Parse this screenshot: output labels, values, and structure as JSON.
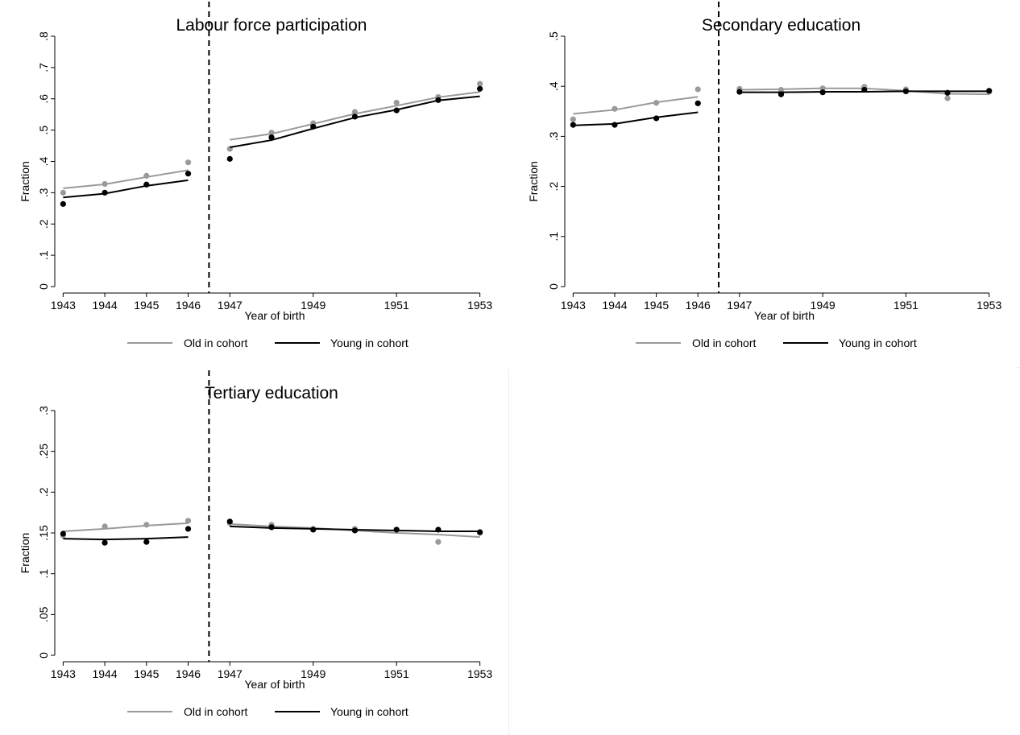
{
  "figure": {
    "xlabel": "Year of birth",
    "ylabel": "Fraction",
    "legend": {
      "old": "Old in cohort",
      "young": "Young in cohort",
      "placement": "bottom"
    },
    "colors": {
      "old": "#9a9a9a",
      "young": "#000000",
      "cutoff": "#000000",
      "axis": "#000000"
    },
    "cutoff_x": 1946.5
  },
  "chart_data": [
    {
      "type": "scatter",
      "title": "Labour force participation",
      "xlabel": "Year of birth",
      "ylabel": "Fraction",
      "xlim": [
        1942.8,
        1953.2
      ],
      "ylim": [
        0,
        0.8
      ],
      "yticks": [
        0,
        0.1,
        0.2,
        0.3,
        0.4,
        0.5,
        0.6,
        0.7,
        0.8
      ],
      "ytick_labels": [
        "0",
        ".1",
        ".2",
        ".3",
        ".4",
        ".5",
        ".6",
        ".7",
        ".8"
      ],
      "xticks": [
        1943,
        1944,
        1945,
        1946,
        1947,
        1949,
        1951,
        1953
      ],
      "xtick_labels": [
        "1943",
        "1944",
        "1945",
        "1946",
        "1947",
        "1949",
        "1951",
        "1953"
      ],
      "grid": false,
      "series": [
        {
          "name": "Old in cohort",
          "points": [
            [
              1943,
              0.3
            ],
            [
              1944,
              0.328
            ],
            [
              1945,
              0.354
            ],
            [
              1946,
              0.397
            ],
            [
              1947,
              0.44
            ],
            [
              1948,
              0.492
            ],
            [
              1949,
              0.522
            ],
            [
              1950,
              0.558
            ],
            [
              1951,
              0.588
            ],
            [
              1952,
              0.606
            ],
            [
              1953,
              0.648
            ]
          ],
          "fit": [
            [
              [
                1943,
                0.314
              ],
              [
                1944,
                0.327
              ],
              [
                1945,
                0.35
              ],
              [
                1946,
                0.372
              ]
            ],
            [
              [
                1947,
                0.469
              ],
              [
                1948,
                0.488
              ],
              [
                1949,
                0.52
              ],
              [
                1950,
                0.552
              ],
              [
                1951,
                0.578
              ],
              [
                1952,
                0.605
              ],
              [
                1953,
                0.622
              ]
            ]
          ]
        },
        {
          "name": "Young in cohort",
          "points": [
            [
              1943,
              0.264
            ],
            [
              1944,
              0.3
            ],
            [
              1945,
              0.326
            ],
            [
              1946,
              0.361
            ],
            [
              1947,
              0.408
            ],
            [
              1948,
              0.477
            ],
            [
              1949,
              0.511
            ],
            [
              1950,
              0.543
            ],
            [
              1951,
              0.563
            ],
            [
              1952,
              0.596
            ],
            [
              1953,
              0.632
            ]
          ],
          "fit": [
            [
              [
                1943,
                0.285
              ],
              [
                1944,
                0.297
              ],
              [
                1945,
                0.322
              ],
              [
                1946,
                0.34
              ]
            ],
            [
              [
                1947,
                0.445
              ],
              [
                1948,
                0.468
              ],
              [
                1949,
                0.505
              ],
              [
                1950,
                0.54
              ],
              [
                1951,
                0.565
              ],
              [
                1952,
                0.595
              ],
              [
                1953,
                0.608
              ]
            ]
          ]
        }
      ]
    },
    {
      "type": "scatter",
      "title": "Secondary education",
      "xlabel": "Year of birth",
      "ylabel": "Fraction",
      "xlim": [
        1942.8,
        1953.2
      ],
      "ylim": [
        0,
        0.5
      ],
      "yticks": [
        0,
        0.1,
        0.2,
        0.3,
        0.4,
        0.5
      ],
      "ytick_labels": [
        "0",
        ".1",
        ".2",
        ".3",
        ".4",
        ".5"
      ],
      "xticks": [
        1943,
        1944,
        1945,
        1946,
        1947,
        1949,
        1951,
        1953
      ],
      "xtick_labels": [
        "1943",
        "1944",
        "1945",
        "1946",
        "1947",
        "1949",
        "1951",
        "1953"
      ],
      "grid": false,
      "series": [
        {
          "name": "Old in cohort",
          "points": [
            [
              1943,
              0.334
            ],
            [
              1944,
              0.355
            ],
            [
              1945,
              0.367
            ],
            [
              1946,
              0.394
            ],
            [
              1947,
              0.395
            ],
            [
              1948,
              0.393
            ],
            [
              1949,
              0.396
            ],
            [
              1950,
              0.399
            ],
            [
              1951,
              0.394
            ],
            [
              1952,
              0.376
            ],
            [
              1953,
              0.389
            ]
          ],
          "fit": [
            [
              [
                1943,
                0.345
              ],
              [
                1944,
                0.353
              ],
              [
                1945,
                0.368
              ],
              [
                1946,
                0.379
              ]
            ],
            [
              [
                1947,
                0.393
              ],
              [
                1948,
                0.394
              ],
              [
                1949,
                0.396
              ],
              [
                1950,
                0.396
              ],
              [
                1951,
                0.391
              ],
              [
                1952,
                0.385
              ],
              [
                1953,
                0.384
              ]
            ]
          ]
        },
        {
          "name": "Young in cohort",
          "points": [
            [
              1943,
              0.323
            ],
            [
              1944,
              0.323
            ],
            [
              1945,
              0.336
            ],
            [
              1946,
              0.366
            ],
            [
              1947,
              0.389
            ],
            [
              1948,
              0.384
            ],
            [
              1949,
              0.388
            ],
            [
              1950,
              0.393
            ],
            [
              1951,
              0.39
            ],
            [
              1952,
              0.387
            ],
            [
              1953,
              0.391
            ]
          ],
          "fit": [
            [
              [
                1943,
                0.322
              ],
              [
                1944,
                0.325
              ],
              [
                1945,
                0.338
              ],
              [
                1946,
                0.348
              ]
            ],
            [
              [
                1947,
                0.388
              ],
              [
                1948,
                0.388
              ],
              [
                1949,
                0.389
              ],
              [
                1950,
                0.389
              ],
              [
                1951,
                0.39
              ],
              [
                1952,
                0.39
              ],
              [
                1953,
                0.39
              ]
            ]
          ]
        }
      ]
    },
    {
      "type": "scatter",
      "title": "Tertiary education",
      "xlabel": "Year of birth",
      "ylabel": "Fraction",
      "xlim": [
        1942.8,
        1953.2
      ],
      "ylim": [
        0,
        0.3
      ],
      "yticks": [
        0,
        0.05,
        0.1,
        0.15,
        0.2,
        0.25,
        0.3
      ],
      "ytick_labels": [
        "0",
        ".05",
        ".1",
        ".15",
        ".2",
        ".25",
        ".3"
      ],
      "xticks": [
        1943,
        1944,
        1945,
        1946,
        1947,
        1949,
        1951,
        1953
      ],
      "xtick_labels": [
        "1943",
        "1944",
        "1945",
        "1946",
        "1947",
        "1949",
        "1951",
        "1953"
      ],
      "grid": false,
      "series": [
        {
          "name": "Old in cohort",
          "points": [
            [
              1943,
              0.147
            ],
            [
              1944,
              0.158
            ],
            [
              1945,
              0.16
            ],
            [
              1946,
              0.165
            ],
            [
              1947,
              0.162
            ],
            [
              1948,
              0.16
            ],
            [
              1949,
              0.155
            ],
            [
              1950,
              0.155
            ],
            [
              1951,
              0.154
            ],
            [
              1952,
              0.139
            ],
            [
              1953,
              0.15
            ]
          ],
          "fit": [
            [
              [
                1943,
                0.152
              ],
              [
                1944,
                0.155
              ],
              [
                1945,
                0.159
              ],
              [
                1946,
                0.162
              ]
            ],
            [
              [
                1947,
                0.161
              ],
              [
                1948,
                0.158
              ],
              [
                1949,
                0.156
              ],
              [
                1950,
                0.153
              ],
              [
                1951,
                0.15
              ],
              [
                1952,
                0.148
              ],
              [
                1953,
                0.145
              ]
            ]
          ]
        },
        {
          "name": "Young in cohort",
          "points": [
            [
              1943,
              0.149
            ],
            [
              1944,
              0.138
            ],
            [
              1945,
              0.139
            ],
            [
              1946,
              0.155
            ],
            [
              1947,
              0.164
            ],
            [
              1948,
              0.157
            ],
            [
              1949,
              0.154
            ],
            [
              1950,
              0.153
            ],
            [
              1951,
              0.154
            ],
            [
              1952,
              0.154
            ],
            [
              1953,
              0.151
            ]
          ],
          "fit": [
            [
              [
                1943,
                0.143
              ],
              [
                1944,
                0.142
              ],
              [
                1945,
                0.143
              ],
              [
                1946,
                0.145
              ]
            ],
            [
              [
                1947,
                0.158
              ],
              [
                1948,
                0.156
              ],
              [
                1949,
                0.155
              ],
              [
                1950,
                0.154
              ],
              [
                1951,
                0.153
              ],
              [
                1952,
                0.152
              ],
              [
                1953,
                0.152
              ]
            ]
          ]
        }
      ]
    }
  ]
}
